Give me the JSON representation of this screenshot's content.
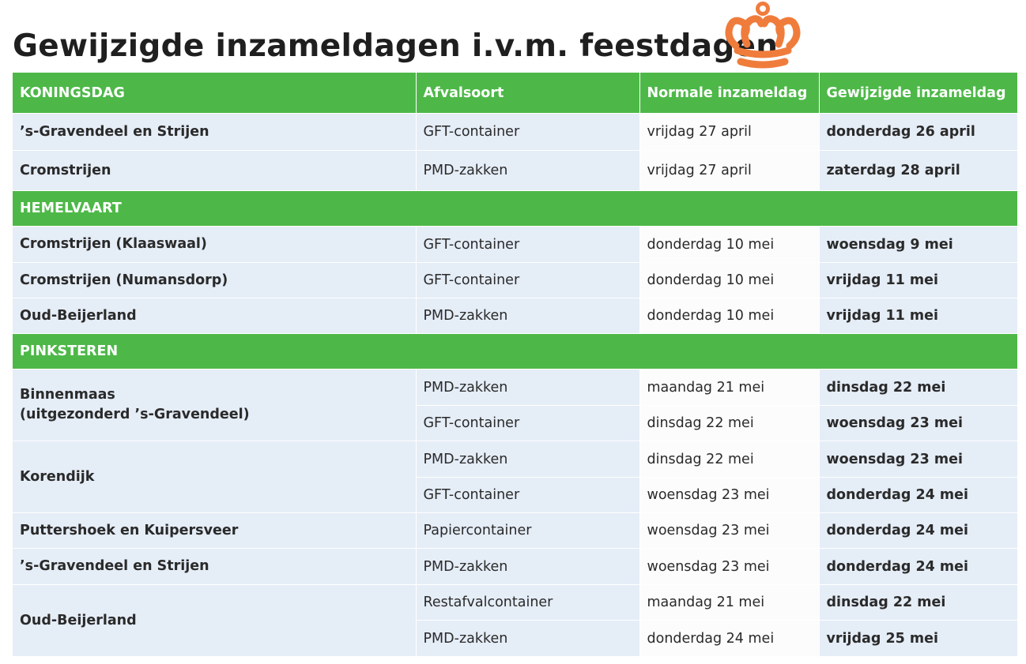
{
  "title": "Gewijzigde inzameldagen i.v.m. feestdagen",
  "crown_icon": {
    "name": "crown-icon",
    "color": "#f07c3c"
  },
  "colors": {
    "header_green": "#4db848",
    "row_blue": "#e5edf7",
    "accent_orange": "#f07c3c"
  },
  "columns": [
    "KONINGSDAG",
    "Afvalsoort",
    "Normale inzameldag",
    "Gewijzigde inzameldag"
  ],
  "sections": [
    {
      "name": "KONINGSDAG",
      "rows": [
        {
          "location": "’s-Gravendeel en Strijen",
          "type": "GFT-container",
          "normal": "vrijdag 27 april",
          "changed": "donderdag 26 april"
        },
        {
          "location": "Cromstrijen",
          "type": "PMD-zakken",
          "normal": "vrijdag 27 april",
          "changed": "zaterdag 28 april"
        }
      ]
    },
    {
      "name": "HEMELVAART",
      "rows": [
        {
          "location": "Cromstrijen (Klaaswaal)",
          "type": "GFT-container",
          "normal": "donderdag 10 mei",
          "changed": "woensdag 9 mei"
        },
        {
          "location": "Cromstrijen (Numansdorp)",
          "type": "GFT-container",
          "normal": "donderdag 10 mei",
          "changed": "vrijdag 11 mei"
        },
        {
          "location": "Oud-Beijerland",
          "type": "PMD-zakken",
          "normal": "donderdag 10 mei",
          "changed": "vrijdag 11 mei"
        }
      ]
    },
    {
      "name": "PINKSTEREN",
      "groups": [
        {
          "location_line1": "Binnenmaas",
          "location_line2": "(uitgezonderd ’s-Gravendeel)",
          "rows": [
            {
              "type": "PMD-zakken",
              "normal": "maandag 21 mei",
              "changed": "dinsdag 22 mei"
            },
            {
              "type": "GFT-container",
              "normal": "dinsdag 22 mei",
              "changed": "woensdag 23 mei"
            }
          ]
        },
        {
          "location": "Korendijk",
          "rows": [
            {
              "type": "PMD-zakken",
              "normal": "dinsdag 22 mei",
              "changed": "woensdag 23 mei"
            },
            {
              "type": "GFT-container",
              "normal": "woensdag 23 mei",
              "changed": "donderdag 24 mei"
            }
          ]
        },
        {
          "location": "Puttershoek en Kuipersveer",
          "rows": [
            {
              "type": "Papiercontainer",
              "normal": "woensdag 23 mei",
              "changed": "donderdag 24 mei"
            }
          ]
        },
        {
          "location": "’s-Gravendeel en Strijen",
          "rows": [
            {
              "type": "PMD-zakken",
              "normal": "woensdag 23 mei",
              "changed": "donderdag 24 mei"
            }
          ]
        },
        {
          "location": "Oud-Beijerland",
          "rows": [
            {
              "type": "Restafvalcontainer",
              "normal": "maandag 21 mei",
              "changed": "dinsdag 22 mei"
            },
            {
              "type": "PMD-zakken",
              "normal": "donderdag 24 mei",
              "changed": "vrijdag 25 mei"
            }
          ]
        }
      ]
    }
  ]
}
